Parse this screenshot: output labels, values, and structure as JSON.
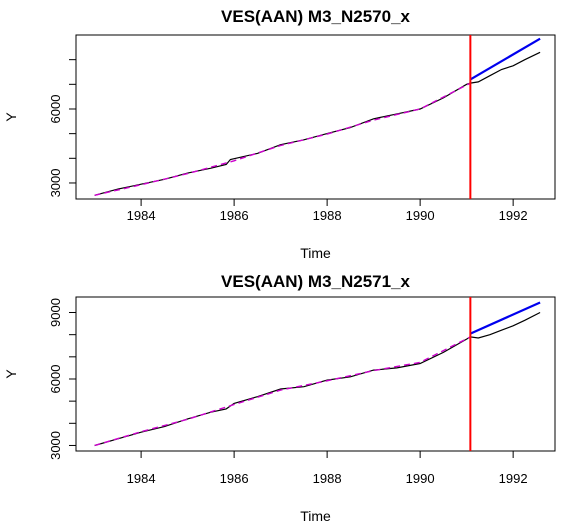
{
  "chart_data": [
    {
      "type": "line",
      "title": "VES(AAN) M3_N2570_x",
      "xlabel": "Time",
      "ylabel": "Y",
      "xlim": [
        1982.6,
        1992.9
      ],
      "ylim": [
        2350,
        9000
      ],
      "xticks": [
        1984,
        1986,
        1988,
        1990,
        1992
      ],
      "yticks": [
        3000,
        6000
      ],
      "yticks_minor": [
        4000,
        5000,
        7000,
        8000
      ],
      "forecast_origin": 1991.08,
      "colors": {
        "actual": "#000000",
        "fitted": "#cc00cc",
        "forecast": "#0000ee",
        "origin": "#ff0000"
      },
      "series": [
        {
          "role": "actual",
          "x": [
            1983.0,
            1983.5,
            1984.0,
            1984.5,
            1985.0,
            1985.5,
            1985.83,
            1985.92,
            1986.5,
            1987.0,
            1987.5,
            1988.0,
            1988.5,
            1989.0,
            1989.5,
            1990.0,
            1990.5,
            1991.0,
            1991.08,
            1991.25,
            1991.5,
            1991.75,
            1992.0,
            1992.25,
            1992.58
          ],
          "y": [
            2500,
            2750,
            2950,
            3150,
            3400,
            3600,
            3750,
            3950,
            4200,
            4550,
            4750,
            5000,
            5250,
            5600,
            5800,
            6000,
            6450,
            7000,
            7050,
            7100,
            7350,
            7600,
            7750,
            8000,
            8300
          ]
        },
        {
          "role": "fitted",
          "x": [
            1983.0,
            1984.0,
            1985.0,
            1986.0,
            1987.0,
            1988.0,
            1989.0,
            1990.0,
            1991.08
          ],
          "y": [
            2500,
            2930,
            3380,
            3900,
            4520,
            4980,
            5550,
            6000,
            7050
          ]
        },
        {
          "role": "forecast",
          "x": [
            1991.08,
            1992.58
          ],
          "y": [
            7200,
            8850
          ]
        }
      ]
    },
    {
      "type": "line",
      "title": "VES(AAN) M3_N2571_x",
      "xlabel": "Time",
      "ylabel": "Y",
      "xlim": [
        1982.6,
        1992.9
      ],
      "ylim": [
        2750,
        9700
      ],
      "xticks": [
        1984,
        1986,
        1988,
        1990,
        1992
      ],
      "yticks": [
        3000,
        6000,
        9000
      ],
      "yticks_minor": [
        4000,
        5000,
        7000,
        8000
      ],
      "forecast_origin": 1991.08,
      "colors": {
        "actual": "#000000",
        "fitted": "#cc00cc",
        "forecast": "#0000ee",
        "origin": "#ff0000"
      },
      "series": [
        {
          "role": "actual",
          "x": [
            1983.0,
            1983.5,
            1984.0,
            1984.5,
            1985.0,
            1985.5,
            1985.83,
            1986.0,
            1986.5,
            1987.0,
            1987.5,
            1988.0,
            1988.5,
            1989.0,
            1989.5,
            1990.0,
            1990.5,
            1991.0,
            1991.08,
            1991.25,
            1991.5,
            1991.75,
            1992.0,
            1992.25,
            1992.58
          ],
          "y": [
            3000,
            3300,
            3600,
            3850,
            4200,
            4500,
            4650,
            4900,
            5200,
            5550,
            5650,
            5950,
            6100,
            6400,
            6500,
            6700,
            7200,
            7800,
            7900,
            7850,
            8000,
            8200,
            8400,
            8650,
            9000
          ]
        },
        {
          "role": "fitted",
          "x": [
            1983.0,
            1984.0,
            1985.0,
            1986.0,
            1987.0,
            1988.0,
            1989.0,
            1990.0,
            1991.08
          ],
          "y": [
            3000,
            3620,
            4180,
            4850,
            5500,
            5920,
            6380,
            6750,
            7900
          ]
        },
        {
          "role": "forecast",
          "x": [
            1991.08,
            1992.58
          ],
          "y": [
            8050,
            9450
          ]
        }
      ]
    }
  ]
}
